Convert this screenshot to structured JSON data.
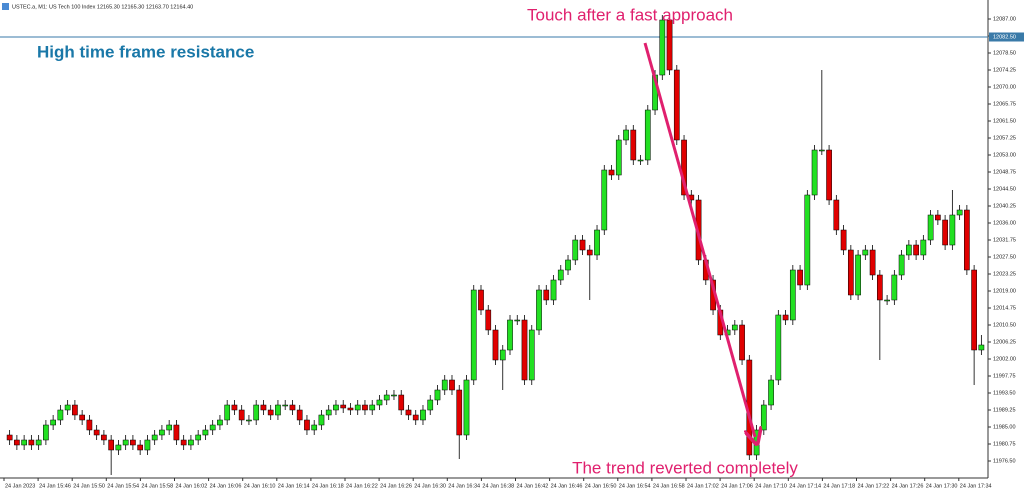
{
  "chart_data": {
    "type": "candlestick",
    "window_title": "USTEC.a, M1: US Tech 100 Index 12165.30 12165.30 12163.70 12164.40",
    "annotations": [
      "Touch after a fast approach",
      "High time frame resistance",
      "The trend reverted completely"
    ],
    "price_line": {
      "value": 12082.5,
      "label": "12082.50"
    },
    "up_color": "#22e022",
    "down_color": "#e00000",
    "x_labels": [
      "24 Jan 2023",
      "24 Jan 15:46",
      "24 Jan 15:50",
      "24 Jan 15:54",
      "24 Jan 15:58",
      "24 Jan 16:02",
      "24 Jan 16:06",
      "24 Jan 16:10",
      "24 Jan 16:14",
      "24 Jan 16:18",
      "24 Jan 16:22",
      "24 Jan 16:26",
      "24 Jan 16:30",
      "24 Jan 16:34",
      "24 Jan 16:38",
      "24 Jan 16:42",
      "24 Jan 16:46",
      "24 Jan 16:50",
      "24 Jan 16:54",
      "24 Jan 16:58",
      "24 Jan 17:02",
      "24 Jan 17:06",
      "24 Jan 17:10",
      "24 Jan 17:14",
      "24 Jan 17:18",
      "24 Jan 17:22",
      "24 Jan 17:26",
      "24 Jan 17:30",
      "24 Jan 17:34"
    ],
    "ylim": [
      11972.25,
      12089.75
    ],
    "yticks": [
      {
        "value": 12087,
        "label": "12087.00"
      },
      {
        "value": 12082.75,
        "label": "12082.75"
      },
      {
        "value": 12078.5,
        "label": "12078.50"
      },
      {
        "value": 12074.25,
        "label": "12074.25"
      },
      {
        "value": 12070,
        "label": "12070.00"
      },
      {
        "value": 12065.75,
        "label": "12065.75"
      },
      {
        "value": 12061.5,
        "label": "12061.50"
      },
      {
        "value": 12057.25,
        "label": "12057.25"
      },
      {
        "value": 12053,
        "label": "12053.00"
      },
      {
        "value": 12048.75,
        "label": "12048.75"
      },
      {
        "value": 12044.5,
        "label": "12044.50"
      },
      {
        "value": 12040.25,
        "label": "12040.25"
      },
      {
        "value": 12036,
        "label": "12036.00"
      },
      {
        "value": 12031.75,
        "label": "12031.75"
      },
      {
        "value": 12027.5,
        "label": "12027.50"
      },
      {
        "value": 12023.25,
        "label": "12023.25"
      },
      {
        "value": 12019,
        "label": "12019.00"
      },
      {
        "value": 12014.75,
        "label": "12014.75"
      },
      {
        "value": 12010.5,
        "label": "12010.50"
      },
      {
        "value": 12006.25,
        "label": "12006.25"
      },
      {
        "value": 12002,
        "label": "12002.00"
      },
      {
        "value": 11997.75,
        "label": "11997.75"
      },
      {
        "value": 11993.5,
        "label": "11993.50"
      },
      {
        "value": 11989.25,
        "label": "11989.25"
      },
      {
        "value": 11985,
        "label": "11985.00"
      },
      {
        "value": 11980.75,
        "label": "11980.75"
      },
      {
        "value": 11976.5,
        "label": "11976.50"
      }
    ],
    "open": [
      11983,
      11981.75,
      11980.5,
      11981.75,
      11980.5,
      11981.75,
      11985.5,
      11986.75,
      11989.25,
      11990.5,
      11988,
      11986.75,
      11984.25,
      11983,
      11981.75,
      11979.25,
      11980.5,
      11981.75,
      11980.5,
      11979.25,
      11981.75,
      11983,
      11984.25,
      11985.5,
      11981.75,
      11980.5,
      11981.75,
      11983,
      11984.25,
      11985.5,
      11986.75,
      11990.5,
      11989.25,
      11986.75,
      11986.75,
      11990.5,
      11989.25,
      11988,
      11990.5,
      11990.5,
      11989.25,
      11986.75,
      11984.25,
      11985.5,
      11988,
      11989.25,
      11990.5,
      11989.75,
      11989.25,
      11990.5,
      11989.25,
      11990.5,
      11991.75,
      11993,
      11993,
      11989.25,
      11988,
      11986.75,
      11989.25,
      11991.75,
      11994.25,
      11996.75,
      11994.25,
      11983,
      11996.75,
      12019.25,
      12014.25,
      12009.25,
      12001.75,
      12004.25,
      12011.75,
      12011.75,
      11996.75,
      12009.25,
      12019.25,
      12016.75,
      12021.75,
      12024.25,
      12026.75,
      12031.75,
      12029.25,
      12028,
      12034.25,
      12049.25,
      12048,
      12056.75,
      12059.25,
      12051.75,
      12051.75,
      12064.25,
      12073,
      12086.75,
      12074.25,
      12056.75,
      12043,
      12041.75,
      12026.75,
      12021.75,
      12014.25,
      12008,
      12009.25,
      12010.5,
      12001.75,
      11978,
      11984.25,
      11990.5,
      11996.75,
      12013,
      12011.75,
      12024.25,
      12020.5,
      12043,
      12054.25,
      12054.25,
      12041.75,
      12034.25,
      12029.25,
      12018,
      12028,
      12029.25,
      12023,
      12016.75,
      12016.75,
      12023,
      12028,
      12030.5,
      12028,
      12031.75,
      12038,
      12036.75,
      12030.5,
      12038,
      12039.25,
      12024.25,
      12004.25
    ],
    "high": [
      11984.25,
      11983,
      11983,
      11983,
      11983,
      11986.75,
      11988,
      11990.5,
      11991.75,
      11991.75,
      11989.25,
      11988,
      11985.5,
      11984.25,
      11983,
      11981.75,
      11983,
      11983,
      11981.75,
      11983,
      11984.25,
      11985.5,
      11986.75,
      11986.75,
      11983,
      11983,
      11984.25,
      11985.5,
      11986.75,
      11988,
      11991.75,
      11991.75,
      11990.5,
      11988,
      11991.75,
      11991.75,
      11990.5,
      11991.75,
      11991.75,
      11991.75,
      11990.5,
      11988,
      11986.75,
      11989.25,
      11990.5,
      11991.75,
      11991.75,
      11991,
      11991.75,
      11991.75,
      11991.75,
      11993,
      11994.25,
      11994.25,
      11994.25,
      11990.5,
      11989.25,
      11990.5,
      11993,
      11995.5,
      11998,
      11998,
      11995.5,
      11998,
      12020.5,
      12020.5,
      12015.5,
      12010.5,
      12005.5,
      12013,
      12013,
      12013,
      12010.5,
      12020.5,
      12020.5,
      12023,
      12025.5,
      12028,
      12033,
      12033,
      12030.5,
      12035.5,
      12050.5,
      12050.5,
      12058,
      12060.5,
      12060.5,
      12053,
      12065.5,
      12074.25,
      12088,
      12088,
      12075.5,
      12058,
      12044.25,
      12043,
      12028,
      12023,
      12015.5,
      12010.5,
      12011.75,
      12011.75,
      12003,
      11985.5,
      11991.75,
      11998,
      12014.25,
      12014.25,
      12025.5,
      12025.5,
      12044.25,
      12055.5,
      12074.25,
      12055.5,
      12043,
      12035.5,
      12030.5,
      12029.25,
      12030.5,
      12030.5,
      12024.25,
      12018,
      12024.25,
      12029.25,
      12031.75,
      12031.75,
      12033,
      12039.25,
      12039.25,
      12038,
      12044.25,
      12040.5,
      12040.5,
      12025.5,
      12008
    ],
    "low": [
      11980.5,
      11979.25,
      11979.25,
      11979.25,
      11979.25,
      11980.5,
      11984.25,
      11985.5,
      11988,
      11986.75,
      11985.5,
      11983,
      11981.75,
      11980.5,
      11973,
      11978,
      11979.25,
      11979.25,
      11978,
      11978,
      11980.5,
      11981.75,
      11983,
      11980.5,
      11979.25,
      11979.25,
      11980.5,
      11981.75,
      11983,
      11984.25,
      11985.5,
      11988,
      11985.5,
      11985.5,
      11985.5,
      11988,
      11986.75,
      11986.75,
      11989.25,
      11988,
      11985.5,
      11983,
      11983,
      11984.25,
      11986.75,
      11988,
      11988.5,
      11988,
      11988,
      11988,
      11988,
      11989.25,
      11990.5,
      11991.75,
      11988,
      11986.75,
      11985.5,
      11985.5,
      11988,
      11990.5,
      11993,
      11993,
      11977,
      11981.75,
      11995.5,
      12013,
      12008,
      12000.5,
      11994.25,
      12003,
      12010.5,
      11995.5,
      11995.5,
      12008,
      12015.5,
      12015.5,
      12020.5,
      12023,
      12025.5,
      12028,
      12016.75,
      12026.75,
      12033,
      12046.75,
      12046.75,
      12055.5,
      12050.5,
      12050.5,
      12050.5,
      12063,
      12071.75,
      12073,
      12055.5,
      12041.75,
      12040.5,
      12025.5,
      12020.5,
      12013,
      12006.75,
      12006.75,
      12008,
      12000.5,
      11976.75,
      11976.75,
      11983,
      11989.25,
      11995.5,
      12010.5,
      12010.5,
      12019.25,
      12019.25,
      12041.75,
      12053,
      12040.5,
      12033,
      12028,
      12016.75,
      12016.75,
      12026.75,
      12021.75,
      12001.75,
      12015.5,
      12015.5,
      12021.75,
      12026.75,
      12026.75,
      12026.75,
      12030.5,
      12035.5,
      12029.25,
      12029.25,
      12036.75,
      12023,
      11995.5,
      12003
    ],
    "close": [
      11981.75,
      11980.5,
      11981.75,
      11980.5,
      11981.75,
      11985.5,
      11986.75,
      11989.25,
      11990.5,
      11988,
      11986.75,
      11984.25,
      11983,
      11981.75,
      11979.25,
      11980.5,
      11981.75,
      11980.5,
      11979.25,
      11981.75,
      11983,
      11984.25,
      11985.5,
      11981.75,
      11980.5,
      11981.75,
      11983,
      11984.25,
      11985.5,
      11986.75,
      11990.5,
      11989.25,
      11986.75,
      11986.75,
      11990.5,
      11989.25,
      11988,
      11990.5,
      11990.5,
      11989.25,
      11986.75,
      11984.25,
      11985.5,
      11988,
      11989.25,
      11990.5,
      11989.75,
      11989.25,
      11990.5,
      11989.25,
      11990.5,
      11991.75,
      11993,
      11993,
      11989.25,
      11988,
      11986.75,
      11989.25,
      11991.75,
      11994.25,
      11996.75,
      11994.25,
      11983,
      11996.75,
      12019.25,
      12014.25,
      12009.25,
      12001.75,
      12004.25,
      12011.75,
      12011.75,
      11996.75,
      12009.25,
      12019.25,
      12016.75,
      12021.75,
      12024.25,
      12026.75,
      12031.75,
      12029.25,
      12028,
      12034.25,
      12049.25,
      12048,
      12056.75,
      12059.25,
      12051.75,
      12051.75,
      12064.25,
      12073,
      12086.75,
      12074.25,
      12056.75,
      12043,
      12041.75,
      12026.75,
      12021.75,
      12014.25,
      12008,
      12009.25,
      12010.5,
      12001.75,
      11978,
      11984.25,
      11990.5,
      11996.75,
      12013,
      12011.75,
      12024.25,
      12020.5,
      12043,
      12054.25,
      12054.25,
      12041.75,
      12034.25,
      12029.25,
      12018,
      12028,
      12029.25,
      12023,
      12016.75,
      12016.75,
      12023,
      12028,
      12030.5,
      12028,
      12031.75,
      12038,
      12036.75,
      12030.5,
      12038,
      12039.25,
      12024.25,
      12004.25,
      12005.5
    ]
  }
}
